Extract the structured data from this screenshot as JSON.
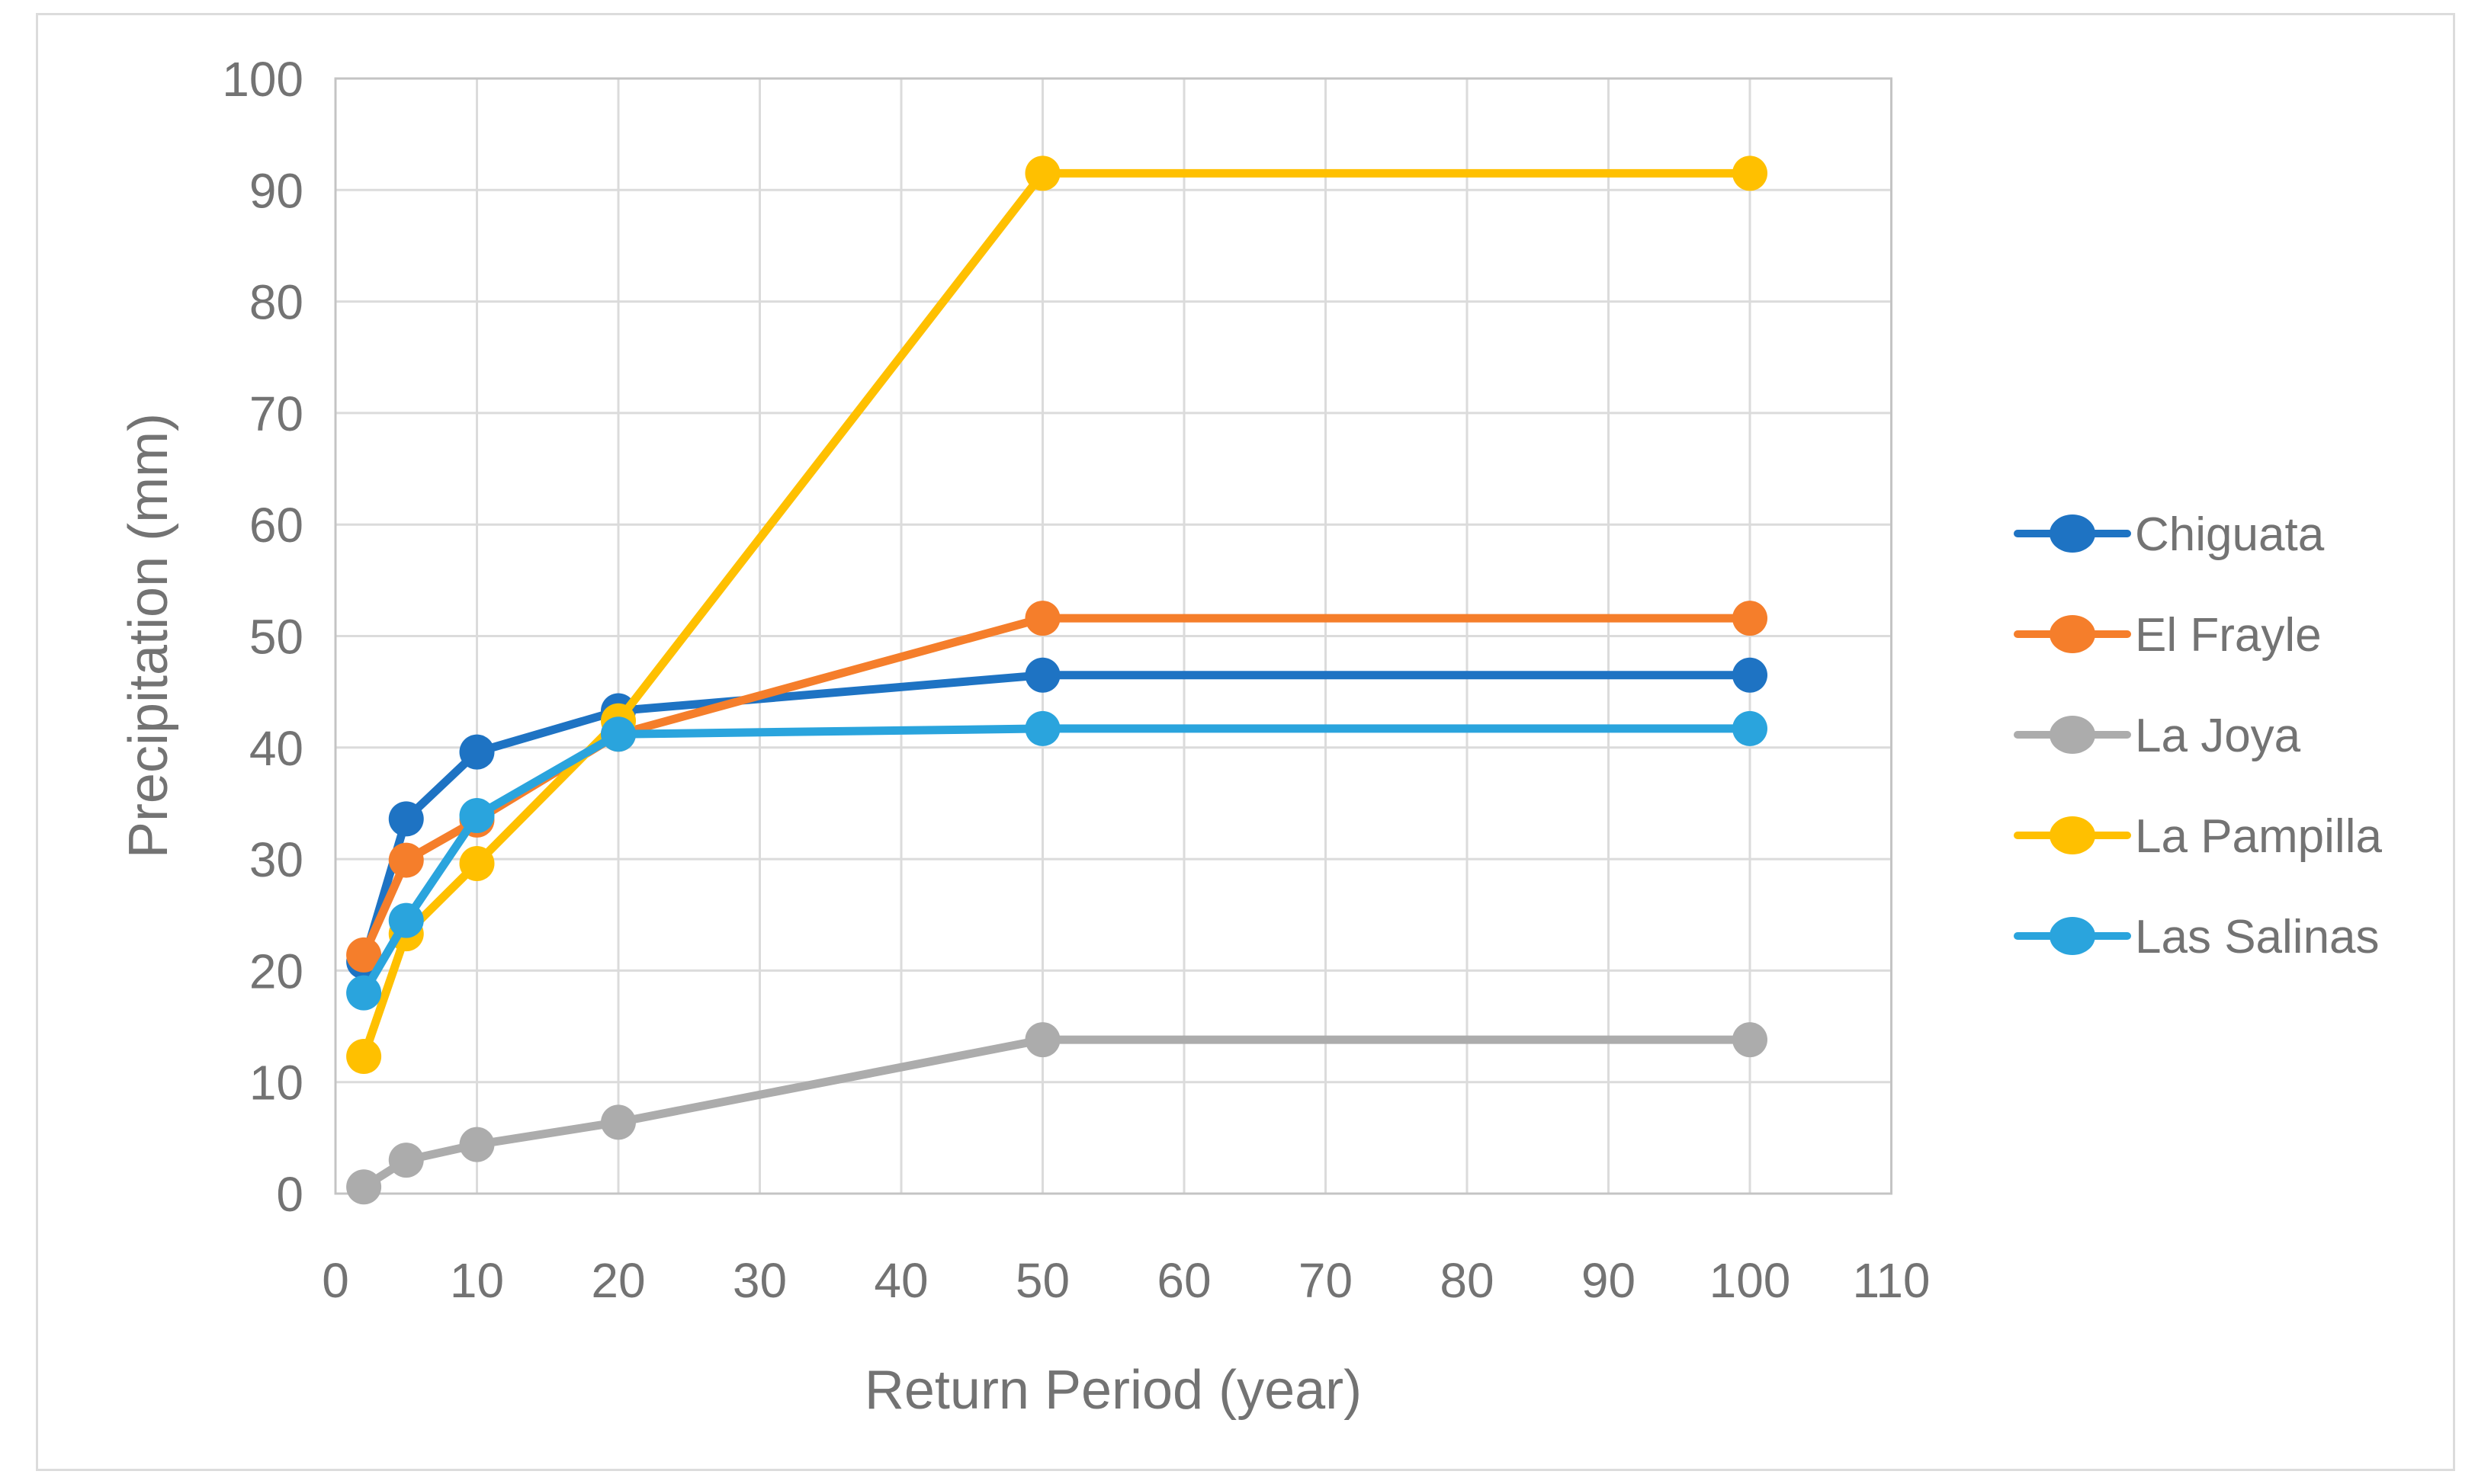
{
  "window": {
    "background": "#FFFFFF",
    "border_color": "#DCDCDC"
  },
  "chart_data": {
    "type": "line",
    "title": "",
    "xlabel": "Return Period (year)",
    "ylabel": "Precipitation (mm)",
    "x": [
      2,
      5,
      10,
      20,
      50,
      100
    ],
    "series": [
      {
        "name": "Chiguata",
        "color": "#1E73C3",
        "values": [
          20.8,
          33.6,
          39.6,
          43.3,
          46.5,
          46.5
        ]
      },
      {
        "name": "El Frayle",
        "color": "#F57E2B",
        "values": [
          21.4,
          29.9,
          33.5,
          41.2,
          51.6,
          51.6
        ]
      },
      {
        "name": "La Joya",
        "color": "#ACACAC",
        "values": [
          0.6,
          3.0,
          4.4,
          6.4,
          13.8,
          13.8
        ]
      },
      {
        "name": "La Pampilla",
        "color": "#FFC000",
        "values": [
          12.3,
          23.3,
          29.6,
          42.4,
          91.5,
          91.5
        ]
      },
      {
        "name": "Las Salinas",
        "color": "#2AA4DD",
        "values": [
          18.0,
          24.5,
          33.9,
          41.2,
          41.7,
          41.7
        ]
      }
    ],
    "xlim": [
      0,
      110
    ],
    "ylim": [
      0,
      100
    ],
    "xticks": [
      0,
      10,
      20,
      30,
      40,
      50,
      60,
      70,
      80,
      90,
      100,
      110
    ],
    "yticks": [
      0,
      10,
      20,
      30,
      40,
      50,
      60,
      70,
      80,
      90,
      100
    ],
    "grid": true,
    "legend_position": "right"
  },
  "styles": {
    "grid_color": "#DBDBDB",
    "axis_color": "#C4C4C4",
    "text_color": "#737373"
  }
}
